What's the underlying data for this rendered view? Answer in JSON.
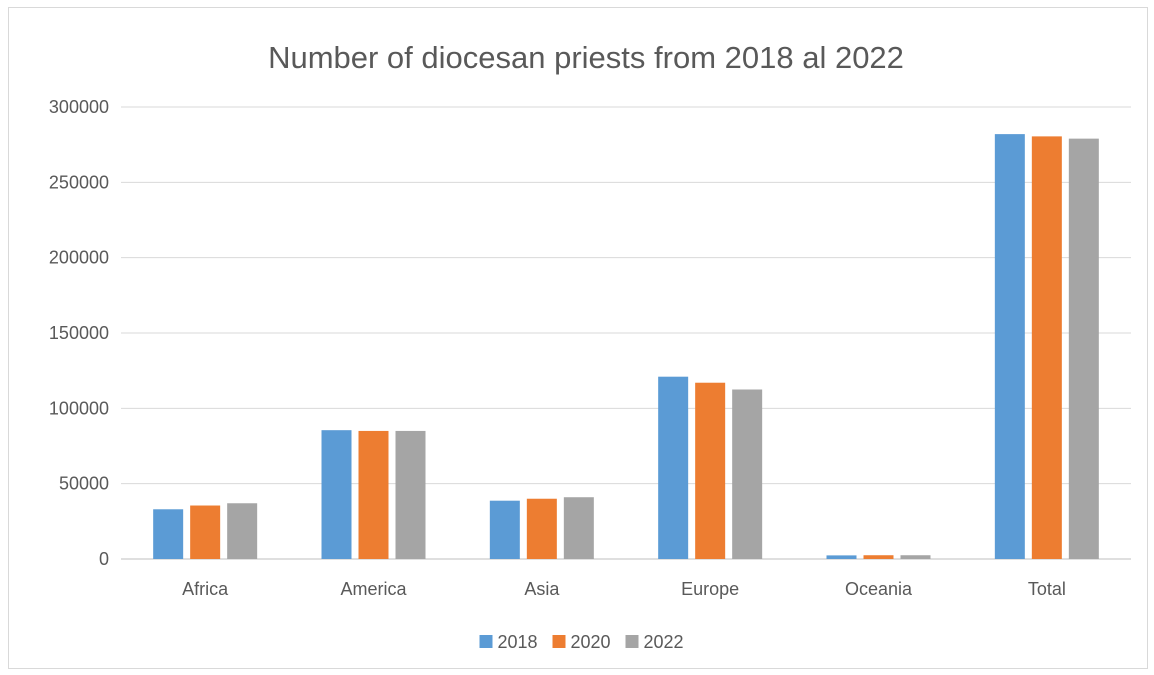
{
  "chart_data": {
    "type": "bar",
    "title": "Number of diocesan priests from 2018 al 2022",
    "xlabel": "",
    "ylabel": "",
    "categories": [
      "Africa",
      "America",
      "Asia",
      "Europe",
      "Oceania",
      "Total"
    ],
    "series": [
      {
        "name": "2018",
        "color": "#5b9bd5",
        "values": [
          33000,
          85500,
          38700,
          121000,
          2400,
          282000
        ]
      },
      {
        "name": "2020",
        "color": "#ed7d31",
        "values": [
          35500,
          85000,
          40000,
          117000,
          2500,
          280500
        ]
      },
      {
        "name": "2022",
        "color": "#a5a5a5",
        "values": [
          37000,
          85000,
          41000,
          112500,
          2500,
          279000
        ]
      }
    ],
    "ylim": [
      0,
      300000
    ],
    "yticks": [
      "0",
      "50000",
      "100000",
      "150000",
      "200000",
      "250000",
      "300000"
    ],
    "grid": true,
    "legend_position": "bottom"
  }
}
